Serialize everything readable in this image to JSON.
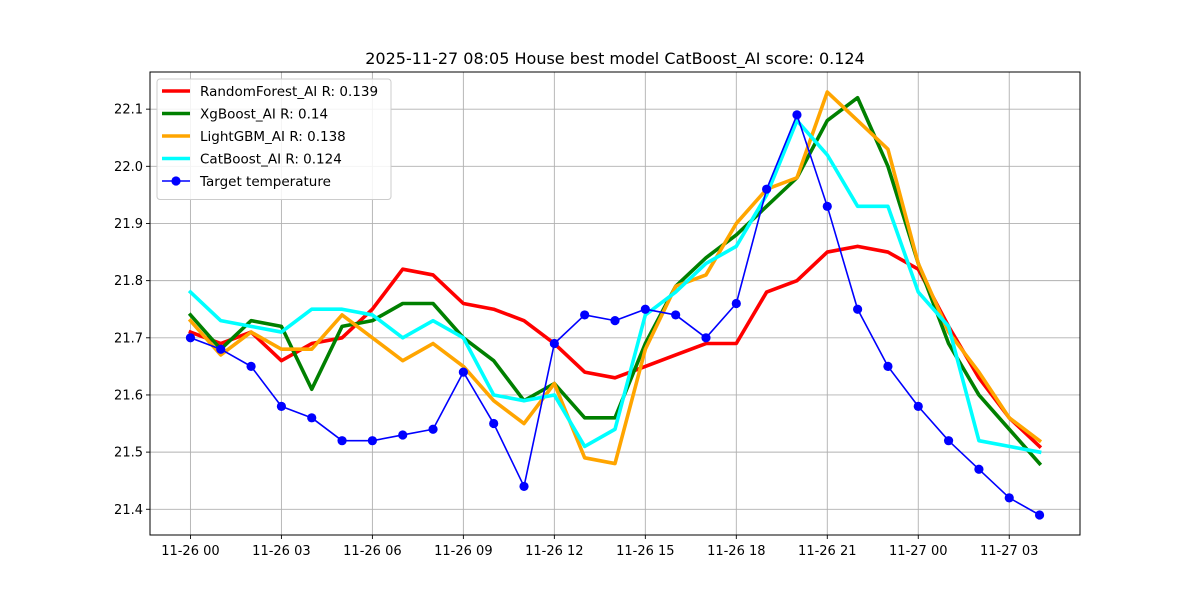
{
  "chart_data": {
    "type": "line",
    "title": "2025-11-27 08:05 House best model CatBoost_AI score: 0.124",
    "xlabel": "",
    "ylabel": "",
    "x_unit": "hour",
    "x": [
      "2025-11-26 00:00",
      "2025-11-26 01:00",
      "2025-11-26 02:00",
      "2025-11-26 03:00",
      "2025-11-26 04:00",
      "2025-11-26 05:00",
      "2025-11-26 06:00",
      "2025-11-26 07:00",
      "2025-11-26 08:00",
      "2025-11-26 09:00",
      "2025-11-26 10:00",
      "2025-11-26 11:00",
      "2025-11-26 12:00",
      "2025-11-26 13:00",
      "2025-11-26 14:00",
      "2025-11-26 15:00",
      "2025-11-26 16:00",
      "2025-11-26 17:00",
      "2025-11-26 18:00",
      "2025-11-26 19:00",
      "2025-11-26 20:00",
      "2025-11-26 21:00",
      "2025-11-26 22:00",
      "2025-11-26 23:00",
      "2025-11-27 00:00",
      "2025-11-27 01:00",
      "2025-11-27 02:00",
      "2025-11-27 03:00",
      "2025-11-27 04:00"
    ],
    "xlim": [
      "2025-11-25 22:40",
      "2025-11-27 05:20"
    ],
    "ylim": [
      21.355,
      22.165
    ],
    "xticks": [
      {
        "at": "2025-11-26 00:00",
        "label": "11-26 00"
      },
      {
        "at": "2025-11-26 03:00",
        "label": "11-26 03"
      },
      {
        "at": "2025-11-26 06:00",
        "label": "11-26 06"
      },
      {
        "at": "2025-11-26 09:00",
        "label": "11-26 09"
      },
      {
        "at": "2025-11-26 12:00",
        "label": "11-26 12"
      },
      {
        "at": "2025-11-26 15:00",
        "label": "11-26 15"
      },
      {
        "at": "2025-11-26 18:00",
        "label": "11-26 18"
      },
      {
        "at": "2025-11-26 21:00",
        "label": "11-26 21"
      },
      {
        "at": "2025-11-27 00:00",
        "label": "11-27 00"
      },
      {
        "at": "2025-11-27 03:00",
        "label": "11-27 03"
      }
    ],
    "yticks": [
      "21.4",
      "21.5",
      "21.6",
      "21.7",
      "21.8",
      "21.9",
      "22.0",
      "22.1"
    ],
    "grid": true,
    "legend_position": "top-left",
    "series": [
      {
        "name": "RandomForest_AI R: 0.139",
        "color": "#ff0000",
        "style": "line",
        "values": [
          21.71,
          21.69,
          21.71,
          21.66,
          21.69,
          21.7,
          21.75,
          21.82,
          21.81,
          21.76,
          21.75,
          21.73,
          21.69,
          21.64,
          21.63,
          21.65,
          21.67,
          21.69,
          21.69,
          21.78,
          21.8,
          21.85,
          21.86,
          21.85,
          21.82,
          21.72,
          21.63,
          21.56,
          21.51
        ]
      },
      {
        "name": "XgBoost_AI R: 0.14",
        "color": "#008000",
        "style": "line",
        "values": [
          21.74,
          21.68,
          21.73,
          21.72,
          21.61,
          21.72,
          21.73,
          21.76,
          21.76,
          21.7,
          21.66,
          21.59,
          21.62,
          21.56,
          21.56,
          21.69,
          21.79,
          21.84,
          21.88,
          21.93,
          21.98,
          22.08,
          22.12,
          22.0,
          21.83,
          21.69,
          21.6,
          21.54,
          21.48
        ]
      },
      {
        "name": "LightGBM_AI R: 0.138",
        "color": "#ffa500",
        "style": "line",
        "values": [
          21.73,
          21.67,
          21.71,
          21.68,
          21.68,
          21.74,
          21.7,
          21.66,
          21.69,
          21.65,
          21.59,
          21.55,
          21.62,
          21.49,
          21.48,
          21.68,
          21.79,
          21.81,
          21.9,
          21.96,
          21.98,
          22.13,
          22.08,
          22.03,
          21.83,
          21.71,
          21.64,
          21.56,
          21.52
        ]
      },
      {
        "name": "CatBoost_AI R: 0.124",
        "color": "#00ffff",
        "style": "line",
        "values": [
          21.78,
          21.73,
          21.72,
          21.71,
          21.75,
          21.75,
          21.74,
          21.7,
          21.73,
          21.7,
          21.6,
          21.59,
          21.6,
          21.51,
          21.54,
          21.74,
          21.78,
          21.83,
          21.86,
          21.95,
          22.08,
          22.02,
          21.93,
          21.93,
          21.78,
          21.72,
          21.52,
          21.51,
          21.5
        ]
      },
      {
        "name": "Target temperature",
        "color": "#0000ff",
        "style": "line-marker",
        "values": [
          21.7,
          21.68,
          21.65,
          21.58,
          21.56,
          21.52,
          21.52,
          21.53,
          21.54,
          21.64,
          21.55,
          21.44,
          21.69,
          21.74,
          21.73,
          21.75,
          21.74,
          21.7,
          21.76,
          21.96,
          22.09,
          21.93,
          21.75,
          21.65,
          21.58,
          21.52,
          21.47,
          21.42,
          21.39
        ]
      }
    ]
  }
}
